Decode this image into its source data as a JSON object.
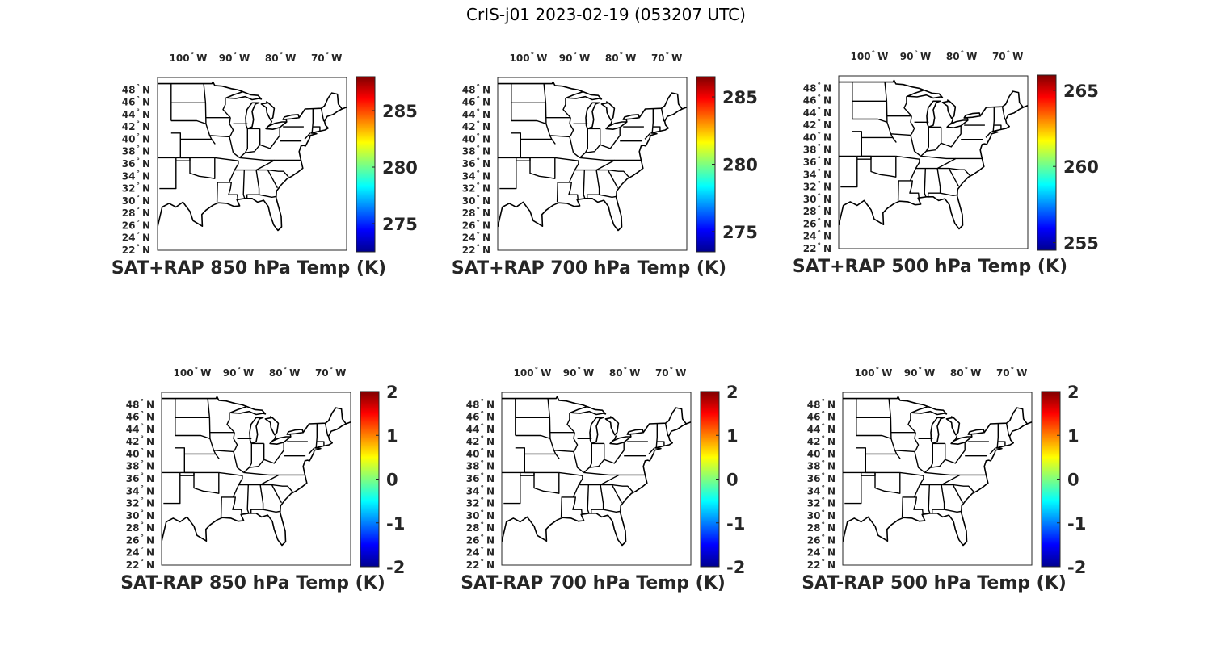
{
  "figure_title": "CrIS-j01 2023-02-19 (053207 UTC)",
  "lon_ticks": [
    {
      "value": -100,
      "deg": "100",
      "hemi": "W"
    },
    {
      "value": -90,
      "deg": "90",
      "hemi": "W"
    },
    {
      "value": -80,
      "deg": "80",
      "hemi": "W"
    },
    {
      "value": -70,
      "deg": "70",
      "hemi": "W"
    }
  ],
  "lat_ticks": [
    {
      "value": 48,
      "deg": "48",
      "hemi": "N"
    },
    {
      "value": 46,
      "deg": "46",
      "hemi": "N"
    },
    {
      "value": 44,
      "deg": "44",
      "hemi": "N"
    },
    {
      "value": 42,
      "deg": "42",
      "hemi": "N"
    },
    {
      "value": 40,
      "deg": "40",
      "hemi": "N"
    },
    {
      "value": 38,
      "deg": "38",
      "hemi": "N"
    },
    {
      "value": 36,
      "deg": "36",
      "hemi": "N"
    },
    {
      "value": 34,
      "deg": "34",
      "hemi": "N"
    },
    {
      "value": 32,
      "deg": "32",
      "hemi": "N"
    },
    {
      "value": 30,
      "deg": "30",
      "hemi": "N"
    },
    {
      "value": 28,
      "deg": "28",
      "hemi": "N"
    },
    {
      "value": 26,
      "deg": "26",
      "hemi": "N"
    },
    {
      "value": 24,
      "deg": "24",
      "hemi": "N"
    },
    {
      "value": 22,
      "deg": "22",
      "hemi": "N"
    }
  ],
  "map_extent": {
    "lon": [
      -107,
      -66
    ],
    "lat": [
      22,
      50
    ]
  },
  "colormap": "jet",
  "panels": [
    {
      "title": "SAT+RAP 850 hPa Temp (K)",
      "clim": [
        272.5,
        288
      ],
      "cbar_ticks": [
        "275",
        "280",
        "285"
      ],
      "cbar_values": [
        275,
        280,
        285
      ]
    },
    {
      "title": "SAT+RAP 700 hPa Temp (K)",
      "clim": [
        273.5,
        286.5
      ],
      "cbar_ticks": [
        "275",
        "280",
        "285"
      ],
      "cbar_values": [
        275,
        280,
        285
      ]
    },
    {
      "title": "SAT+RAP 500 hPa Temp (K)",
      "clim": [
        254.5,
        266
      ],
      "cbar_ticks": [
        "255",
        "260",
        "265"
      ],
      "cbar_values": [
        255,
        260,
        265
      ]
    },
    {
      "title": "SAT-RAP 850 hPa Temp (K)",
      "clim": [
        -2,
        2
      ],
      "cbar_ticks": [
        "-2",
        "-1",
        "0",
        "1",
        "2"
      ],
      "cbar_values": [
        -2,
        -1,
        0,
        1,
        2
      ]
    },
    {
      "title": "SAT-RAP 700 hPa Temp (K)",
      "clim": [
        -2,
        2
      ],
      "cbar_ticks": [
        "-2",
        "-1",
        "0",
        "1",
        "2"
      ],
      "cbar_values": [
        -2,
        -1,
        0,
        1,
        2
      ]
    },
    {
      "title": "SAT-RAP 500 hPa Temp (K)",
      "clim": [
        -2,
        2
      ],
      "cbar_ticks": [
        "-2",
        "-1",
        "0",
        "1",
        "2"
      ],
      "cbar_values": [
        -2,
        -1,
        0,
        1,
        2
      ]
    }
  ]
}
